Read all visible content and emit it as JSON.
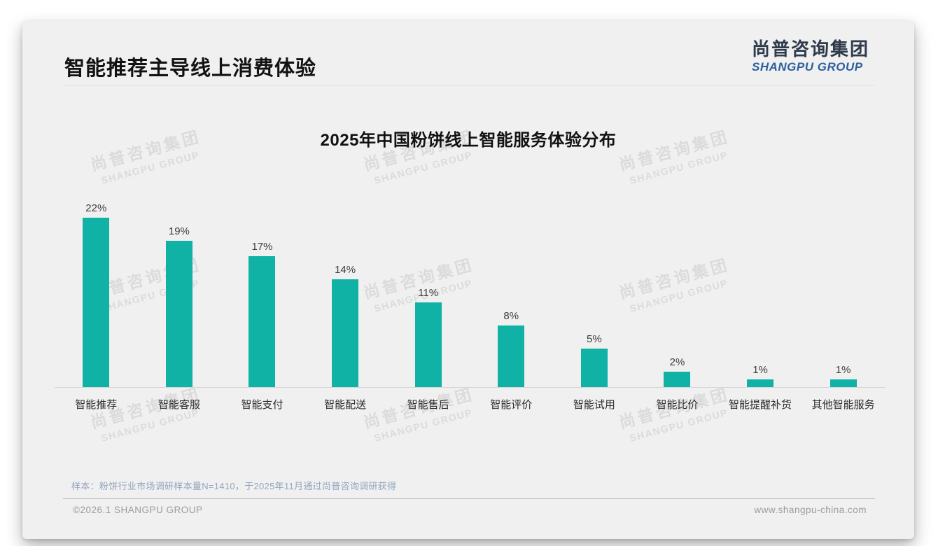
{
  "header": {
    "title": "智能推荐主导线上消费体验",
    "logo": {
      "cn": "尚普咨询集团",
      "en": "SHANGPU GROUP"
    }
  },
  "chart_data": {
    "type": "bar",
    "title": "2025年中国粉饼线上智能服务体验分布",
    "categories": [
      "智能推荐",
      "智能客服",
      "智能支付",
      "智能配送",
      "智能售后",
      "智能评价",
      "智能试用",
      "智能比价",
      "智能提醒补货",
      "其他智能服务"
    ],
    "values": [
      22,
      19,
      17,
      14,
      11,
      8,
      5,
      2,
      1,
      1
    ],
    "unit": "%",
    "xlabel": "",
    "ylabel": "",
    "ylim": [
      0,
      24
    ],
    "grid": false,
    "legend": false,
    "bar_color": "#0fb2a4",
    "value_label_color": "#3d3d3d"
  },
  "watermark": {
    "cn": "尚普咨询集团",
    "en": "SHANGPU GROUP"
  },
  "footnote": "样本：粉饼行业市场调研样本量N=1410，于2025年11月通过尚普咨询调研获得",
  "footer": {
    "copyright": "©2026.1 SHANGPU GROUP",
    "website": "www.shangpu-china.com"
  },
  "colors": {
    "card_background": "#f0f0f1",
    "bar": "#0fb2a4",
    "logo_blue": "#2c5f9c",
    "logo_dark": "#2f3b4a",
    "footnote_text": "#93a5bd",
    "footer_text": "#9b9b9b"
  }
}
